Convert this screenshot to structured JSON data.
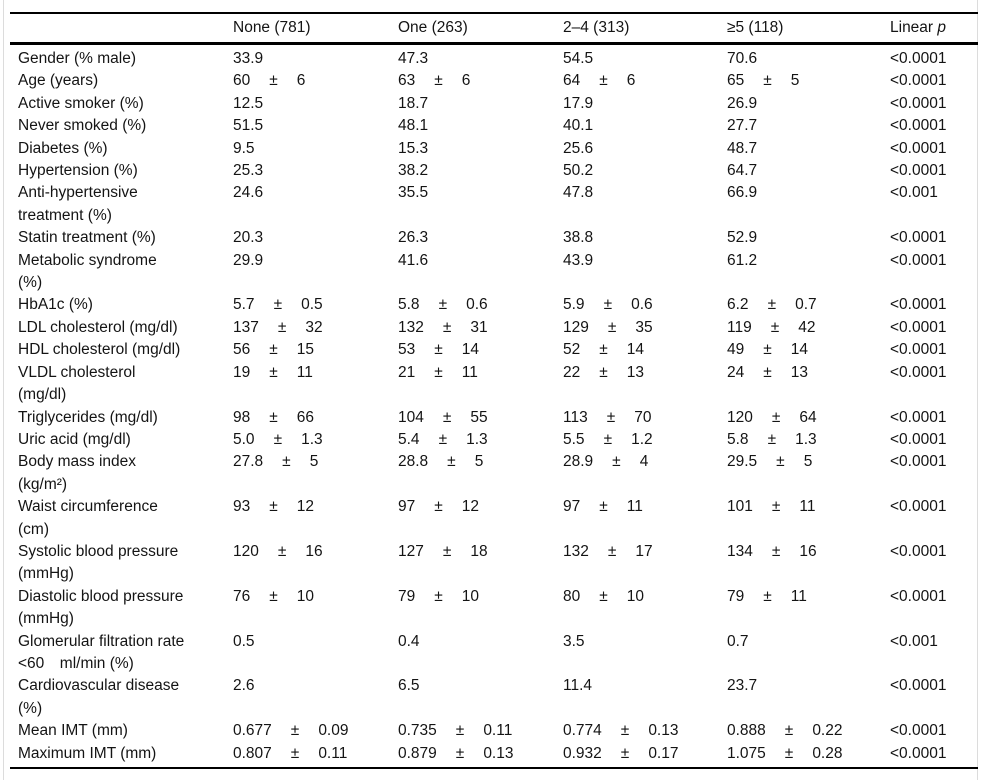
{
  "table": {
    "plus_minus": "±",
    "columns": [
      "",
      "None (781)",
      "One (263)",
      "2–4 (313)",
      "≥5 (118)"
    ],
    "p_header": {
      "prefix": "Linear",
      "italic": "p"
    },
    "rows": [
      {
        "label": "Gender (% male)",
        "cells": [
          {
            "v": "33.9"
          },
          {
            "v": "47.3"
          },
          {
            "v": "54.5"
          },
          {
            "v": "70.6"
          }
        ],
        "p": "<0.0001"
      },
      {
        "label": "Age (years)",
        "cells": [
          {
            "v": "60",
            "sd": "6"
          },
          {
            "v": "63",
            "sd": "6"
          },
          {
            "v": "64",
            "sd": "6"
          },
          {
            "v": "65",
            "sd": "5"
          }
        ],
        "p": "<0.0001"
      },
      {
        "label": "Active smoker (%)",
        "cells": [
          {
            "v": "12.5"
          },
          {
            "v": "18.7"
          },
          {
            "v": "17.9"
          },
          {
            "v": "26.9"
          }
        ],
        "p": "<0.0001"
      },
      {
        "label": "Never smoked (%)",
        "cells": [
          {
            "v": "51.5"
          },
          {
            "v": "48.1"
          },
          {
            "v": "40.1"
          },
          {
            "v": "27.7"
          }
        ],
        "p": "<0.0001"
      },
      {
        "label": "Diabetes (%)",
        "cells": [
          {
            "v": "9.5"
          },
          {
            "v": "15.3"
          },
          {
            "v": "25.6"
          },
          {
            "v": "48.7"
          }
        ],
        "p": "<0.0001"
      },
      {
        "label": "Hypertension (%)",
        "cells": [
          {
            "v": "25.3"
          },
          {
            "v": "38.2"
          },
          {
            "v": "50.2"
          },
          {
            "v": "64.7"
          }
        ],
        "p": "<0.0001"
      },
      {
        "label": "Anti-hypertensive\ntreatment (%)",
        "cells": [
          {
            "v": "24.6"
          },
          {
            "v": "35.5"
          },
          {
            "v": "47.8"
          },
          {
            "v": "66.9"
          }
        ],
        "p": "<0.001"
      },
      {
        "label": "Statin treatment (%)",
        "cells": [
          {
            "v": "20.3"
          },
          {
            "v": "26.3"
          },
          {
            "v": "38.8"
          },
          {
            "v": "52.9"
          }
        ],
        "p": "<0.0001"
      },
      {
        "label": "Metabolic syndrome\n(%)",
        "cells": [
          {
            "v": "29.9"
          },
          {
            "v": "41.6"
          },
          {
            "v": "43.9"
          },
          {
            "v": "61.2"
          }
        ],
        "p": "<0.0001"
      },
      {
        "label": "HbA1c (%)",
        "cells": [
          {
            "v": "5.7",
            "sd": "0.5"
          },
          {
            "v": "5.8",
            "sd": "0.6"
          },
          {
            "v": "5.9",
            "sd": "0.6"
          },
          {
            "v": "6.2",
            "sd": "0.7"
          }
        ],
        "p": "<0.0001"
      },
      {
        "label": "LDL cholesterol (mg/dl)",
        "cells": [
          {
            "v": "137",
            "sd": "32"
          },
          {
            "v": "132",
            "sd": "31"
          },
          {
            "v": "129",
            "sd": "35"
          },
          {
            "v": "119",
            "sd": "42"
          }
        ],
        "p": "<0.0001"
      },
      {
        "label": "HDL cholesterol (mg/dl)",
        "cells": [
          {
            "v": "56",
            "sd": "15"
          },
          {
            "v": "53",
            "sd": "14"
          },
          {
            "v": "52",
            "sd": "14"
          },
          {
            "v": "49",
            "sd": "14"
          }
        ],
        "p": "<0.0001"
      },
      {
        "label": "VLDL cholesterol\n(mg/dl)",
        "cells": [
          {
            "v": "19",
            "sd": "11"
          },
          {
            "v": "21",
            "sd": "11"
          },
          {
            "v": "22",
            "sd": "13"
          },
          {
            "v": "24",
            "sd": "13"
          }
        ],
        "p": "<0.0001"
      },
      {
        "label": "Triglycerides (mg/dl)",
        "cells": [
          {
            "v": "98",
            "sd": "66"
          },
          {
            "v": "104",
            "sd": "55"
          },
          {
            "v": "113",
            "sd": "70"
          },
          {
            "v": "120",
            "sd": "64"
          }
        ],
        "p": "<0.0001"
      },
      {
        "label": "Uric acid (mg/dl)",
        "cells": [
          {
            "v": "5.0",
            "sd": "1.3"
          },
          {
            "v": "5.4",
            "sd": "1.3"
          },
          {
            "v": "5.5",
            "sd": "1.2"
          },
          {
            "v": "5.8",
            "sd": "1.3"
          }
        ],
        "p": "<0.0001"
      },
      {
        "label": "Body mass index\n(kg/m²)",
        "cells": [
          {
            "v": "27.8",
            "sd": "5"
          },
          {
            "v": "28.8",
            "sd": "5"
          },
          {
            "v": "28.9",
            "sd": "4"
          },
          {
            "v": "29.5",
            "sd": "5"
          }
        ],
        "p": "<0.0001"
      },
      {
        "label": "Waist circumference\n(cm)",
        "cells": [
          {
            "v": "93",
            "sd": "12"
          },
          {
            "v": "97",
            "sd": "12"
          },
          {
            "v": "97",
            "sd": "11"
          },
          {
            "v": "101",
            "sd": "11"
          }
        ],
        "p": "<0.0001"
      },
      {
        "label": "Systolic blood pressure\n(mmHg)",
        "cells": [
          {
            "v": "120",
            "sd": "16"
          },
          {
            "v": "127",
            "sd": "18"
          },
          {
            "v": "132",
            "sd": "17"
          },
          {
            "v": "134",
            "sd": "16"
          }
        ],
        "p": "<0.0001"
      },
      {
        "label": "Diastolic blood pressure\n(mmHg)",
        "cells": [
          {
            "v": "76",
            "sd": "10"
          },
          {
            "v": "79",
            "sd": "10"
          },
          {
            "v": "80",
            "sd": "10"
          },
          {
            "v": "79",
            "sd": "11"
          }
        ],
        "p": "<0.0001"
      },
      {
        "label": "Glomerular filtration rate\n<60 ml/min (%)",
        "cells": [
          {
            "v": "0.5"
          },
          {
            "v": "0.4"
          },
          {
            "v": "3.5"
          },
          {
            "v": "0.7"
          }
        ],
        "p": "<0.001"
      },
      {
        "label": "Cardiovascular disease\n(%)",
        "cells": [
          {
            "v": "2.6"
          },
          {
            "v": "6.5"
          },
          {
            "v": "11.4"
          },
          {
            "v": "23.7"
          }
        ],
        "p": "<0.0001"
      },
      {
        "label": "Mean IMT (mm)",
        "cells": [
          {
            "v": "0.677",
            "sd": "0.09"
          },
          {
            "v": "0.735",
            "sd": "0.11"
          },
          {
            "v": "0.774",
            "sd": "0.13"
          },
          {
            "v": "0.888",
            "sd": "0.22"
          }
        ],
        "p": "<0.0001"
      },
      {
        "label": "Maximum IMT (mm)",
        "cells": [
          {
            "v": "0.807",
            "sd": "0.11"
          },
          {
            "v": "0.879",
            "sd": "0.13"
          },
          {
            "v": "0.932",
            "sd": "0.17"
          },
          {
            "v": "1.075",
            "sd": "0.28"
          }
        ],
        "p": "<0.0001"
      }
    ]
  }
}
